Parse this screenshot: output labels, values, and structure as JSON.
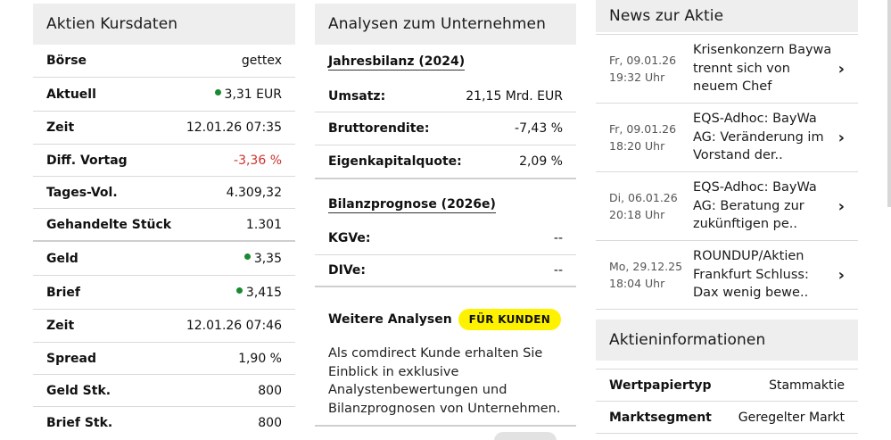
{
  "kursdaten": {
    "title": "Aktien Kursdaten",
    "rows": [
      {
        "label": "Börse",
        "value": "gettex"
      },
      {
        "label": "Aktuell",
        "value": "3,31 EUR"
      },
      {
        "label": "Zeit",
        "value": "12.01.26 07:35"
      },
      {
        "label": "Diff. Vortag",
        "value": "-3,36 %"
      },
      {
        "label": "Tages-Vol.",
        "value": "4.309,32"
      },
      {
        "label": "Gehandelte Stück",
        "value": "1.301"
      },
      {
        "label": "Geld",
        "value": "3,35"
      },
      {
        "label": "Brief",
        "value": "3,415"
      },
      {
        "label": "Zeit",
        "value": "12.01.26 07:46"
      },
      {
        "label": "Spread",
        "value": "1,90 %"
      },
      {
        "label": "Geld Stk.",
        "value": "800"
      },
      {
        "label": "Brief Stk.",
        "value": "800"
      }
    ]
  },
  "analysen": {
    "title": "Analysen zum Unternehmen",
    "jahresbilanz_title": "Jahresbilanz (2024)",
    "jahresbilanz": [
      {
        "label": "Umsatz:",
        "value": "21,15 Mrd. EUR"
      },
      {
        "label": "Bruttorendite:",
        "value": "-7,43 %"
      },
      {
        "label": "Eigenkapitalquote:",
        "value": "2,09 %"
      }
    ],
    "prognose_title": "Bilanzprognose (2026e)",
    "prognose": [
      {
        "label": "KGVe:",
        "value": "--"
      },
      {
        "label": "DIVe:",
        "value": "--"
      }
    ],
    "weitere_label": "Weitere Analysen",
    "badge_label": "FÜR KUNDEN",
    "text": "Als comdirect Kunde erhalten Sie Einblick in exklusive Analystenbewertungen und Bilanzprognosen von Unternehmen."
  },
  "news": {
    "title": "News zur Aktie",
    "items": [
      {
        "day": "Fr, 09.01.26",
        "time": "19:32 Uhr",
        "title": "Krisenkonzern Baywa trennt sich von neuem Chef"
      },
      {
        "day": "Fr, 09.01.26",
        "time": "18:20 Uhr",
        "title": "EQS-Adhoc: BayWa AG: Veränderung im Vorstand der.."
      },
      {
        "day": "Di, 06.01.26",
        "time": "20:18 Uhr",
        "title": "EQS-Adhoc: BayWa AG: Beratung zur zukünftigen pe.."
      },
      {
        "day": "Mo, 29.12.25",
        "time": "18:04 Uhr",
        "title": "ROUNDUP/Aktien Frankfurt Schluss: Dax wenig bewe.."
      }
    ]
  },
  "aktieninfo": {
    "title": "Aktieninformationen",
    "rows": [
      {
        "label": "Wertpapiertyp",
        "value": "Stammaktie"
      },
      {
        "label": "Marktsegment",
        "value": "Geregelter Markt"
      }
    ]
  },
  "colors": {
    "accent_yellow": "#fff200",
    "positive_green": "#1a8a2e",
    "negative_red": "#d0312d"
  },
  "icons": {
    "price_dot": "status-dot-icon",
    "news_chevron": "chevron-right-icon"
  }
}
